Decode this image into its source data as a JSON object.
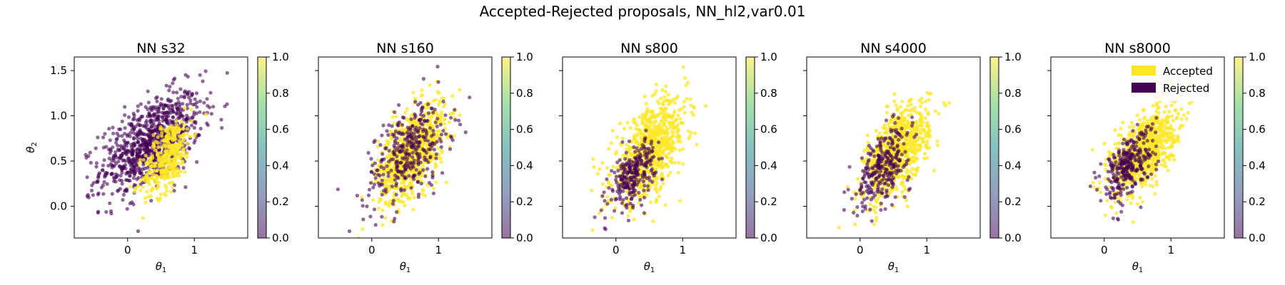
{
  "figure": {
    "suptitle": "Accepted-Rejected proposals, NN_hl2,var0.01"
  },
  "colors": {
    "accepted": "#fde725",
    "rejected": "#440154",
    "colormap": [
      "#440154",
      "#3b528b",
      "#21918c",
      "#5ec962",
      "#fde725"
    ],
    "axis": "#000000"
  },
  "chart_data": [
    {
      "type": "scatter",
      "title": "NN s32",
      "xlabel": "θ1",
      "ylabel": "θ2",
      "xlim": [
        -0.8,
        1.8
      ],
      "ylim": [
        -0.35,
        1.65
      ],
      "xticks": [
        0,
        1
      ],
      "yticks": [
        0.0,
        0.5,
        1.0,
        1.5
      ],
      "colorbar": {
        "range": [
          0.0,
          1.0
        ],
        "ticks": [
          "1.0",
          "0.8",
          "0.6",
          "0.4",
          "0.2",
          "0.0"
        ]
      },
      "accepted_ratio": 0.3,
      "series": [
        {
          "name": "Rejected",
          "center": [
            0.35,
            0.7
          ],
          "spread": [
            0.38,
            0.28
          ],
          "points": 900
        },
        {
          "name": "Accepted",
          "center": [
            0.6,
            0.55
          ],
          "spread": [
            0.18,
            0.22
          ],
          "points": 350
        }
      ]
    },
    {
      "type": "scatter",
      "title": "NN s160",
      "xlabel": "θ1",
      "ylabel": "",
      "xlim": [
        -0.8,
        1.8
      ],
      "ylim": [
        -0.35,
        1.65
      ],
      "xticks": [
        0,
        1
      ],
      "yticks": [
        0.0,
        0.5,
        1.0,
        1.5
      ],
      "colorbar": {
        "range": [
          0.0,
          1.0
        ],
        "ticks": [
          "1.0",
          "0.8",
          "0.6",
          "0.4",
          "0.2",
          "0.0"
        ]
      },
      "accepted_ratio": 0.7,
      "series": [
        {
          "name": "Accepted",
          "center": [
            0.6,
            0.6
          ],
          "spread": [
            0.25,
            0.27
          ],
          "points": 800
        },
        {
          "name": "Rejected",
          "center": [
            0.55,
            0.6
          ],
          "spread": [
            0.33,
            0.3
          ],
          "points": 350
        }
      ]
    },
    {
      "type": "scatter",
      "title": "NN s800",
      "xlabel": "θ1",
      "ylabel": "",
      "xlim": [
        -0.8,
        1.8
      ],
      "ylim": [
        -0.35,
        1.65
      ],
      "xticks": [
        0,
        1
      ],
      "yticks": [
        0.0,
        0.5,
        1.0,
        1.5
      ],
      "colorbar": {
        "range": [
          0.0,
          1.0
        ],
        "ticks": [
          "1.0",
          "0.8",
          "0.6",
          "0.4",
          "0.2",
          "0.0"
        ]
      },
      "accepted_ratio": 0.8,
      "series": [
        {
          "name": "Accepted",
          "center": [
            0.5,
            0.6
          ],
          "spread": [
            0.28,
            0.28
          ],
          "points": 800
        },
        {
          "name": "Rejected",
          "center": [
            0.25,
            0.35
          ],
          "spread": [
            0.17,
            0.18
          ],
          "points": 260
        }
      ]
    },
    {
      "type": "scatter",
      "title": "NN s4000",
      "xlabel": "θ1",
      "ylabel": "",
      "xlim": [
        -0.8,
        1.8
      ],
      "ylim": [
        -0.35,
        1.65
      ],
      "xticks": [
        0,
        1
      ],
      "yticks": [
        0.0,
        0.5,
        1.0,
        1.5
      ],
      "colorbar": {
        "range": [
          0.0,
          1.0
        ],
        "ticks": [
          "1.0",
          "0.8",
          "0.6",
          "0.4",
          "0.2",
          "0.0"
        ]
      },
      "accepted_ratio": 0.8,
      "series": [
        {
          "name": "Accepted",
          "center": [
            0.55,
            0.6
          ],
          "spread": [
            0.24,
            0.26
          ],
          "points": 800
        },
        {
          "name": "Rejected",
          "center": [
            0.35,
            0.45
          ],
          "spread": [
            0.2,
            0.22
          ],
          "points": 280
        }
      ]
    },
    {
      "type": "scatter",
      "title": "NN s8000",
      "xlabel": "θ1",
      "ylabel": "",
      "xlim": [
        -0.8,
        1.8
      ],
      "ylim": [
        -0.35,
        1.65
      ],
      "xticks": [
        0,
        1
      ],
      "yticks": [
        0.0,
        0.5,
        1.0,
        1.5
      ],
      "colorbar": {
        "range": [
          0.0,
          1.0
        ],
        "ticks": [
          "1.0",
          "0.8",
          "0.6",
          "0.4",
          "0.2",
          "0.0"
        ]
      },
      "accepted_ratio": 0.75,
      "legend": {
        "position": "top-right",
        "entries": [
          "Accepted",
          "Rejected"
        ]
      },
      "series": [
        {
          "name": "Accepted",
          "center": [
            0.6,
            0.62
          ],
          "spread": [
            0.24,
            0.24
          ],
          "points": 800
        },
        {
          "name": "Rejected",
          "center": [
            0.35,
            0.45
          ],
          "spread": [
            0.2,
            0.2
          ],
          "points": 300
        }
      ]
    }
  ]
}
